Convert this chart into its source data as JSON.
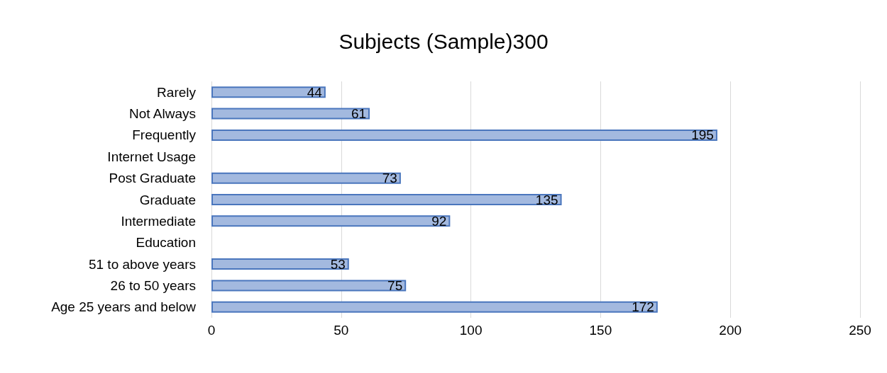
{
  "chart_data": {
    "type": "bar",
    "orientation": "horizontal",
    "title": "Subjects (Sample)300",
    "categories": [
      "Rarely",
      "Not Always",
      "Frequently",
      "Internet Usage",
      "Post Graduate",
      "Graduate",
      "Intermediate",
      "Education",
      "51 to above years",
      "26 to 50 years",
      "Age 25 years and below"
    ],
    "values": [
      44,
      61,
      195,
      null,
      73,
      135,
      92,
      null,
      53,
      75,
      172
    ],
    "color": "#a3b9df",
    "xlim": [
      0,
      250
    ],
    "xticks": [
      0,
      50,
      100,
      150,
      200,
      250
    ],
    "grid": "x",
    "data_labels": true
  }
}
